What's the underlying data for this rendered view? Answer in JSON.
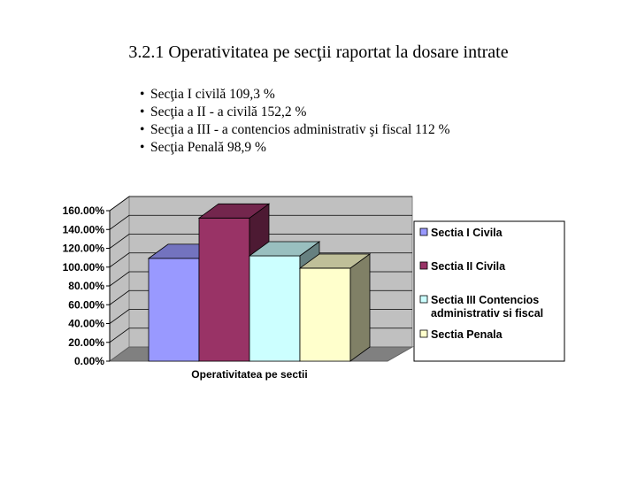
{
  "page": {
    "title": "3.2.1 Operativitatea pe secţii raportat la dosare intrate",
    "bullets": [
      "Secţia I civilă   109,3 %",
      "Secţia a II - a civilă  152,2 %",
      "Secţia a III - a  contencios administrativ şi fiscal  112 %",
      "Secţia Penală  98,9 %"
    ]
  },
  "chart_data": {
    "type": "bar",
    "style": "3d-clustered-column",
    "xlabel": "Operativitatea pe sectii",
    "ylabel": "",
    "ylim": [
      0,
      160
    ],
    "yticks": [
      "0.00%",
      "20.00%",
      "40.00%",
      "60.00%",
      "80.00%",
      "100.00%",
      "120.00%",
      "140.00%",
      "160.00%"
    ],
    "grid": true,
    "legend_position": "right",
    "series": [
      {
        "name": "Sectia I Civila",
        "value": 109.3,
        "color": "#9999ff"
      },
      {
        "name": "Sectia II Civila",
        "value": 152.2,
        "color": "#993366"
      },
      {
        "name": "Sectia III Contencios administrativ si fiscal",
        "value": 112,
        "color": "#ccffff"
      },
      {
        "name": "Sectia Penala",
        "value": 98.9,
        "color": "#ffffcc"
      }
    ]
  }
}
